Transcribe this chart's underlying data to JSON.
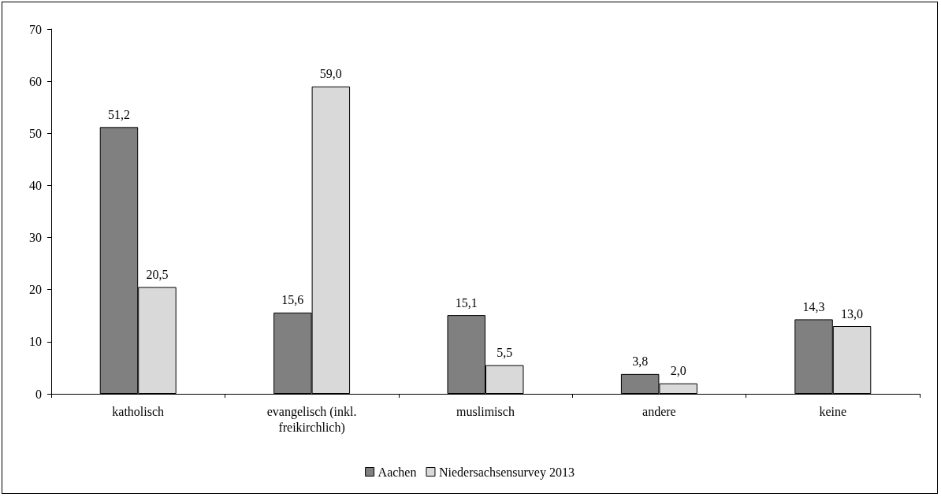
{
  "chart_data": {
    "type": "bar",
    "categories": [
      "katholisch",
      "evangelisch (inkl.\nfreikirchlich)",
      "muslimisch",
      "andere",
      "keine"
    ],
    "series": [
      {
        "name": "Aachen",
        "color": "#808080",
        "values": [
          51.2,
          15.6,
          15.1,
          3.8,
          14.3
        ],
        "value_labels": [
          "51,2",
          "15,6",
          "15,1",
          "3,8",
          "14,3"
        ]
      },
      {
        "name": "Niedersachsensurvey 2013",
        "color": "#d9d9d9",
        "values": [
          20.5,
          59.0,
          5.5,
          2.0,
          13.0
        ],
        "value_labels": [
          "20,5",
          "59,0",
          "5,5",
          "2,0",
          "13,0"
        ]
      }
    ],
    "ylim": [
      0,
      70
    ],
    "yticks": [
      0,
      10,
      20,
      30,
      40,
      50,
      60,
      70
    ],
    "grid": false,
    "legend": "bottom"
  }
}
